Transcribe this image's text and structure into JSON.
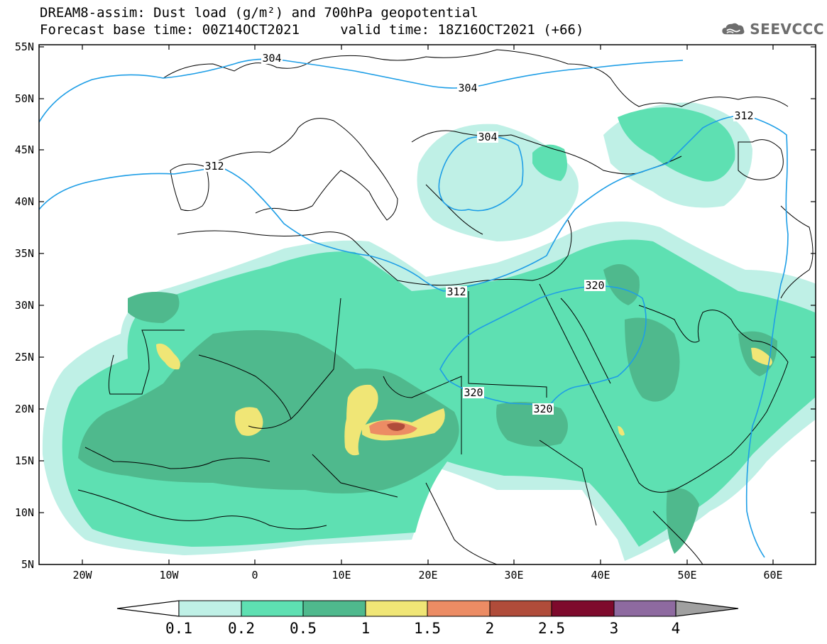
{
  "header": {
    "title_line1": "DREAM8-assim: Dust load (g/m²) and 700hPa geopotential",
    "title_line2": "Forecast base time: 00Z14OCT2021     valid time: 18Z16OCT2021 (+66)",
    "logo_text": "SEEVCCC"
  },
  "map": {
    "lat_labels": [
      "55N",
      "50N",
      "45N",
      "40N",
      "35N",
      "30N",
      "25N",
      "20N",
      "15N",
      "10N",
      "5N"
    ],
    "lon_labels": [
      "20W",
      "10W",
      "0",
      "10E",
      "20E",
      "30E",
      "40E",
      "50E",
      "60E"
    ],
    "contour_labels": [
      {
        "id": "c1",
        "text": "304"
      },
      {
        "id": "c2",
        "text": "304"
      },
      {
        "id": "c3",
        "text": "304"
      },
      {
        "id": "c4",
        "text": "312"
      },
      {
        "id": "c5",
        "text": "312"
      },
      {
        "id": "c6",
        "text": "312"
      },
      {
        "id": "c7",
        "text": "320"
      },
      {
        "id": "c8",
        "text": "320"
      },
      {
        "id": "c9",
        "text": "320"
      }
    ],
    "colors": {
      "dust_0_1": "#bff0e6",
      "dust_0_2": "#5ee0b2",
      "dust_0_5": "#4fb98d",
      "dust_1": "#f0e676",
      "dust_1_5": "#ec8c64",
      "dust_2": "#b04c3a",
      "dust_2_5": "#7e0a2c",
      "dust_3": "#8e6aa0",
      "dust_4": "#a0a0a0",
      "contour": "#1e9ee6"
    }
  },
  "colorbar": {
    "labels": [
      "0.1",
      "0.2",
      "0.5",
      "1",
      "1.5",
      "2",
      "2.5",
      "3",
      "4"
    ]
  }
}
